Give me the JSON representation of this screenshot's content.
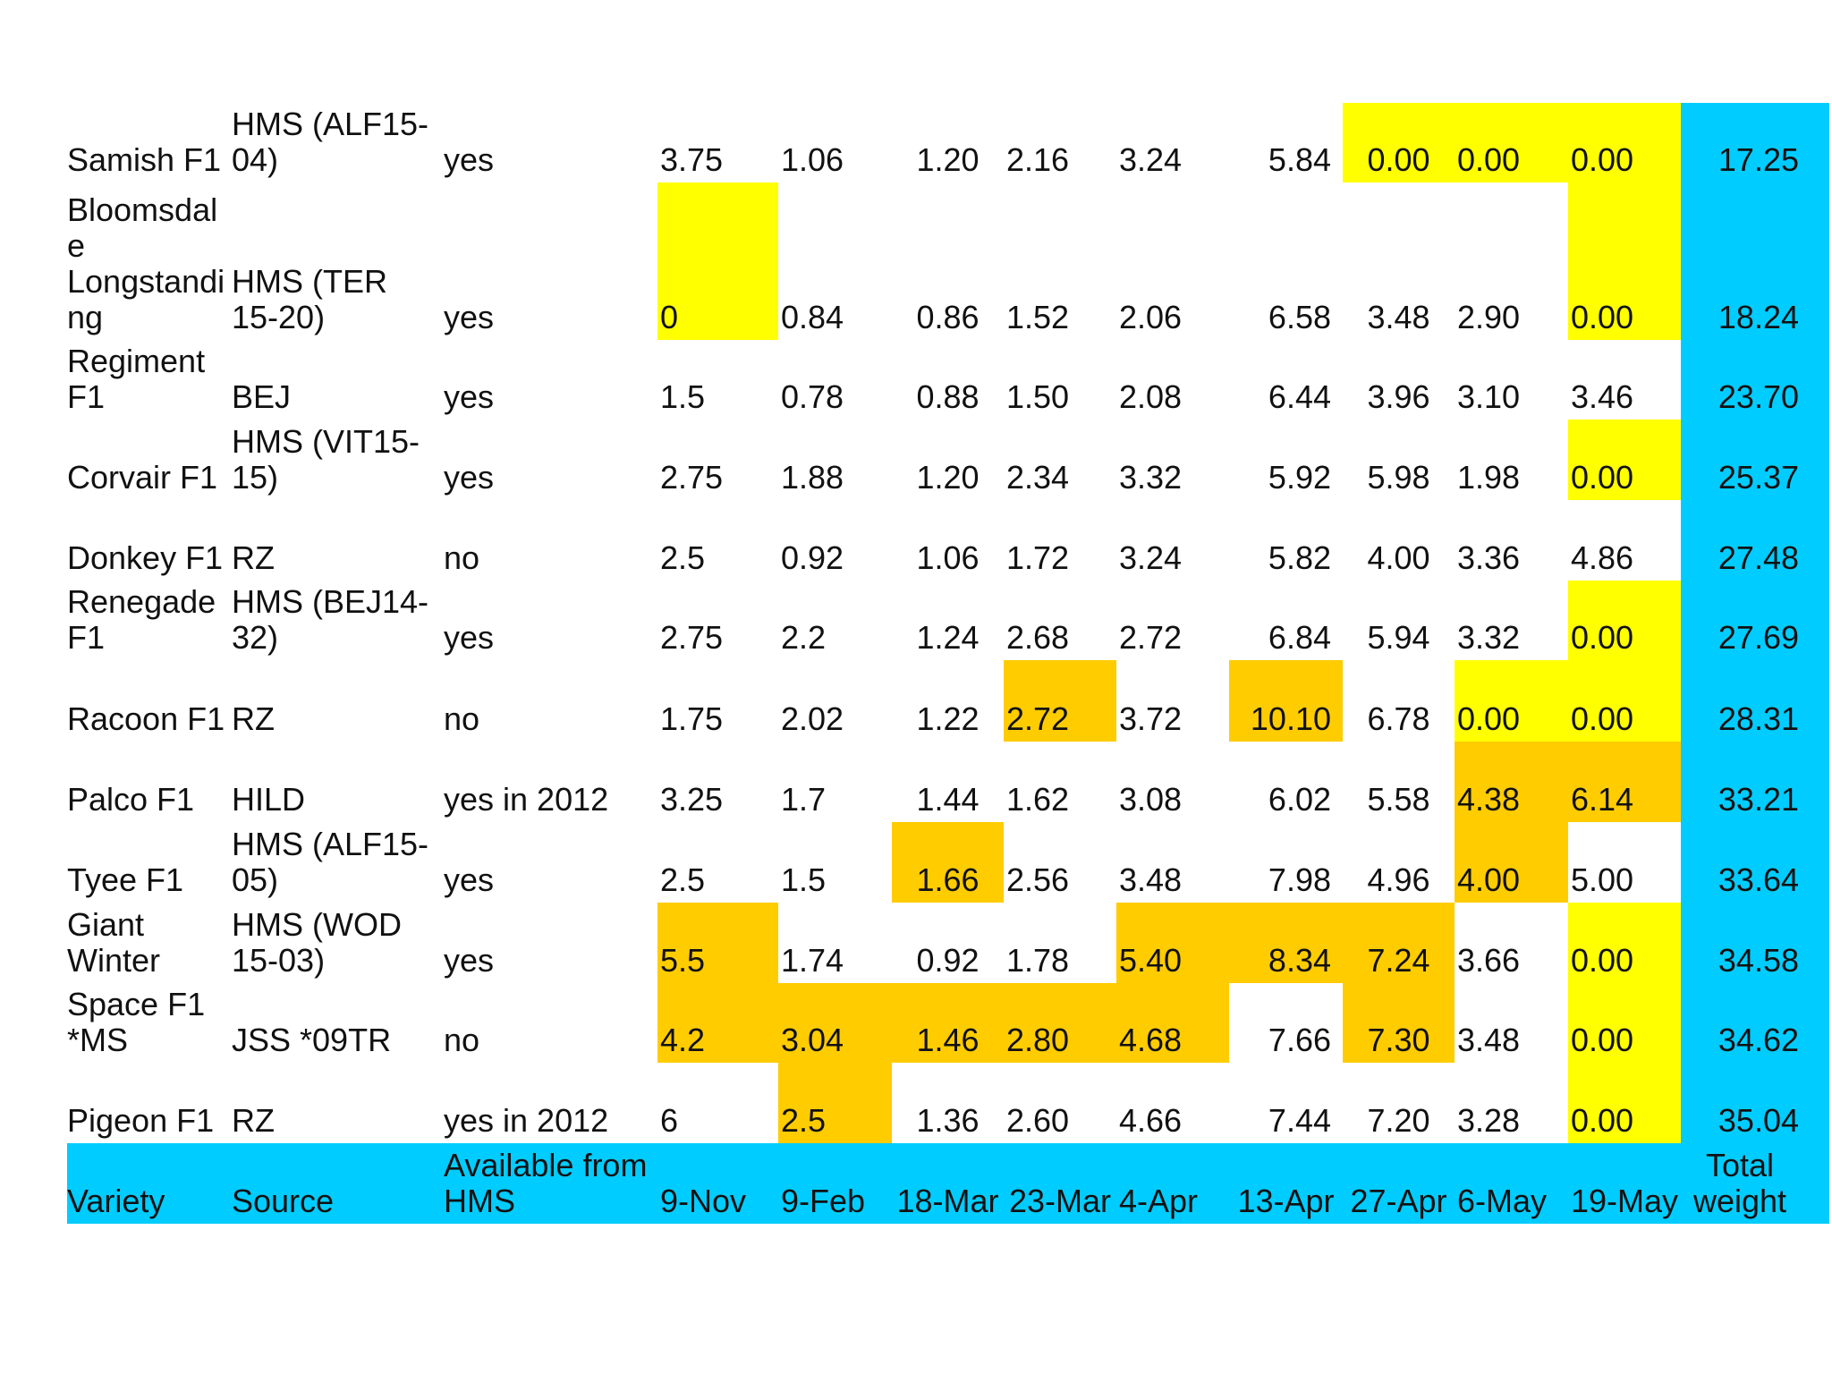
{
  "colors": {
    "yellow": "#ffff00",
    "orange": "#ffcc00",
    "cyan": "#00ccff"
  },
  "table": {
    "header": {
      "variety": [
        "Variety"
      ],
      "source": [
        "Source"
      ],
      "available": [
        "Available from",
        "HMS"
      ],
      "dates": [
        "9-Nov",
        "9-Feb",
        "18-Mar",
        "23-Mar",
        "4-Apr",
        "13-Apr",
        "27-Apr",
        "6-May",
        "19-May"
      ],
      "total": [
        "Total",
        "weight"
      ]
    },
    "rows": [
      {
        "variety": [
          "Samish F1"
        ],
        "source": [
          "HMS (ALF15-",
          "04)"
        ],
        "available": "yes",
        "values": [
          "3.75",
          "1.06",
          "1.20",
          "2.16",
          "3.24",
          "5.84",
          "0.00",
          "0.00",
          "0.00"
        ],
        "total": "17.25",
        "fills": [
          "",
          "",
          "",
          "",
          "",
          "",
          "yellow",
          "yellow",
          "yellow"
        ]
      },
      {
        "variety": [
          "Bloomsdal",
          "e",
          "Longstandi",
          "ng"
        ],
        "source": [
          "HMS (TER",
          "15-20)"
        ],
        "available": "yes",
        "values": [
          "0",
          "0.84",
          "0.86",
          "1.52",
          "2.06",
          "6.58",
          "3.48",
          "2.90",
          "0.00"
        ],
        "total": "18.24",
        "fills": [
          "yellow",
          "",
          "",
          "",
          "",
          "",
          "",
          "",
          "yellow"
        ]
      },
      {
        "variety": [
          "Regiment",
          "F1"
        ],
        "source": [
          "BEJ"
        ],
        "available": "yes",
        "values": [
          "1.5",
          "0.78",
          "0.88",
          "1.50",
          "2.08",
          "6.44",
          "3.96",
          "3.10",
          "3.46"
        ],
        "total": "23.70",
        "fills": [
          "",
          "",
          "",
          "",
          "",
          "",
          "",
          "",
          ""
        ]
      },
      {
        "variety": [
          "Corvair F1"
        ],
        "source": [
          "HMS (VIT15-",
          "15)"
        ],
        "available": "yes",
        "values": [
          "2.75",
          "1.88",
          "1.20",
          "2.34",
          "3.32",
          "5.92",
          "5.98",
          "1.98",
          "0.00"
        ],
        "total": "25.37",
        "fills": [
          "",
          "",
          "",
          "",
          "",
          "",
          "",
          "",
          "yellow"
        ]
      },
      {
        "variety": [
          "Donkey F1"
        ],
        "source": [
          "RZ"
        ],
        "available": "no",
        "values": [
          "2.5",
          "0.92",
          "1.06",
          "1.72",
          "3.24",
          "5.82",
          "4.00",
          "3.36",
          "4.86"
        ],
        "total": "27.48",
        "fills": [
          "",
          "",
          "",
          "",
          "",
          "",
          "",
          "",
          ""
        ]
      },
      {
        "variety": [
          "Renegade",
          "F1"
        ],
        "source": [
          "HMS (BEJ14-",
          "32)"
        ],
        "available": "yes",
        "values": [
          "2.75",
          "2.2",
          "1.24",
          "2.68",
          "2.72",
          "6.84",
          "5.94",
          "3.32",
          "0.00"
        ],
        "total": "27.69",
        "fills": [
          "",
          "",
          "",
          "",
          "",
          "",
          "",
          "",
          "yellow"
        ]
      },
      {
        "variety": [
          "Racoon F1"
        ],
        "source": [
          "RZ"
        ],
        "available": "no",
        "values": [
          "1.75",
          "2.02",
          "1.22",
          "2.72",
          "3.72",
          "10.10",
          "6.78",
          "0.00",
          "0.00"
        ],
        "total": "28.31",
        "fills": [
          "",
          "",
          "",
          "orange",
          "",
          "orange",
          "",
          "yellow",
          "yellow"
        ]
      },
      {
        "variety": [
          "Palco F1"
        ],
        "source": [
          "HILD"
        ],
        "available": "yes in 2012",
        "values": [
          "3.25",
          "1.7",
          "1.44",
          "1.62",
          "3.08",
          "6.02",
          "5.58",
          "4.38",
          "6.14"
        ],
        "total": "33.21",
        "fills": [
          "",
          "",
          "",
          "",
          "",
          "",
          "",
          "orange",
          "orange"
        ]
      },
      {
        "variety": [
          "Tyee F1"
        ],
        "source": [
          "HMS (ALF15-",
          "05)"
        ],
        "available": "yes",
        "values": [
          "2.5",
          "1.5",
          "1.66",
          "2.56",
          "3.48",
          "7.98",
          "4.96",
          "4.00",
          "5.00"
        ],
        "total": "33.64",
        "fills": [
          "",
          "",
          "orange",
          "",
          "",
          "",
          "",
          "orange",
          ""
        ]
      },
      {
        "variety": [
          "Giant",
          "Winter"
        ],
        "source": [
          "HMS (WOD",
          "15-03)"
        ],
        "available": "yes",
        "values": [
          "5.5",
          "1.74",
          "0.92",
          "1.78",
          "5.40",
          "8.34",
          "7.24",
          "3.66",
          "0.00"
        ],
        "total": "34.58",
        "fills": [
          "orange",
          "",
          "",
          "",
          "orange",
          "orange",
          "orange",
          "",
          "yellow"
        ]
      },
      {
        "variety": [
          "Space F1",
          "*MS"
        ],
        "source": [
          "JSS *09TR"
        ],
        "available": "no",
        "values": [
          "4.2",
          "3.04",
          "1.46",
          "2.80",
          "4.68",
          "7.66",
          "7.30",
          "3.48",
          "0.00"
        ],
        "total": "34.62",
        "fills": [
          "orange",
          "orange",
          "orange",
          "orange",
          "orange",
          "",
          "orange",
          "",
          "yellow"
        ]
      },
      {
        "variety": [
          "Pigeon F1"
        ],
        "source": [
          "RZ"
        ],
        "available": "yes in 2012",
        "values": [
          "6",
          "2.5",
          "1.36",
          "2.60",
          "4.66",
          "7.44",
          "7.20",
          "3.28",
          "0.00"
        ],
        "total": "35.04",
        "fills": [
          "",
          "orange",
          "",
          "",
          "",
          "",
          "",
          "",
          "yellow"
        ]
      }
    ]
  }
}
